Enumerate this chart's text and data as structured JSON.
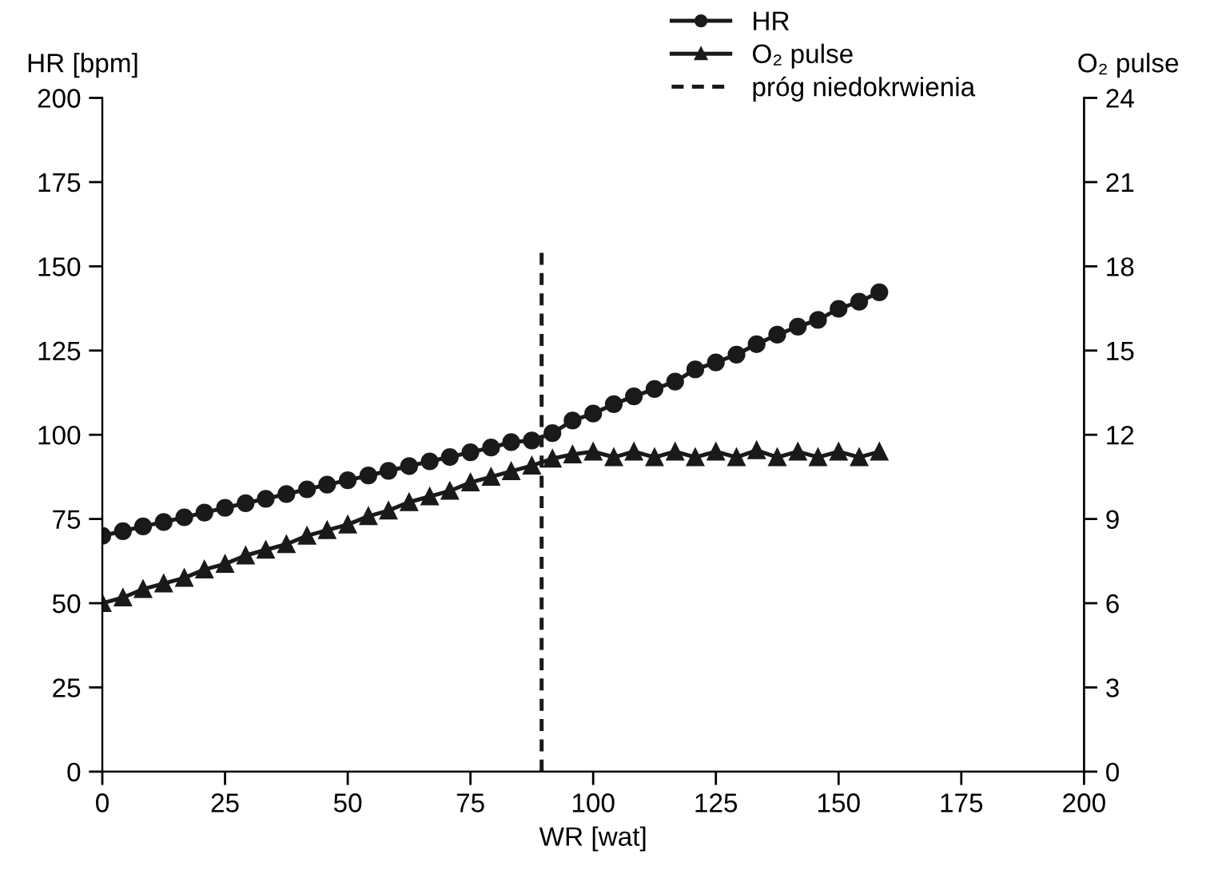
{
  "chart_data": {
    "type": "line",
    "xlabel": "WR [wat]",
    "ylabel": "HR [bpm]",
    "y2label": "O₂ pulse",
    "xlim": [
      0,
      200
    ],
    "xticks": [
      0,
      25,
      50,
      75,
      100,
      125,
      150,
      175,
      200
    ],
    "ylim": [
      0,
      200
    ],
    "yticks": [
      0,
      25,
      50,
      75,
      100,
      125,
      150,
      175,
      200
    ],
    "y2lim": [
      0,
      24
    ],
    "y2ticks": [
      0,
      3,
      6,
      9,
      12,
      15,
      18,
      21,
      24
    ],
    "grid": false,
    "legend": "top right",
    "x": [
      0,
      4.2,
      8.3,
      12.5,
      16.7,
      20.8,
      25,
      29.2,
      33.3,
      37.5,
      41.7,
      45.8,
      50,
      54.2,
      58.3,
      62.5,
      66.7,
      70.8,
      75,
      79.2,
      83.3,
      87.5,
      91.7,
      95.8,
      100,
      104.2,
      108.3,
      112.5,
      116.7,
      120.8,
      125,
      129.2,
      133.3,
      137.5,
      141.7,
      145.8,
      150,
      154.2,
      158.3
    ],
    "series": [
      {
        "name": "HR",
        "color": "#1a1a1a",
        "marker": "circle",
        "line_style": "solid",
        "values": [
          70,
          71.4,
          72.8,
          74.1,
          75.5,
          76.9,
          78.3,
          79.7,
          81.0,
          82.4,
          83.8,
          85.2,
          86.5,
          87.9,
          89.3,
          90.7,
          92.1,
          93.4,
          94.8,
          96.2,
          97.8,
          98.3,
          100.5,
          104.2,
          106.3,
          109.1,
          111.4,
          113.6,
          115.8,
          119.4,
          121.5,
          123.8,
          126.9,
          129.7,
          132.1,
          134.1,
          137.4,
          139.5,
          142.3
        ]
      },
      {
        "name": "O₂ pulse",
        "color": "#1a1a1a",
        "marker": "triangle",
        "line_style": "solid",
        "axis": "y2",
        "values": [
          6.0,
          6.2,
          6.5,
          6.7,
          6.9,
          7.2,
          7.4,
          7.7,
          7.9,
          8.1,
          8.4,
          8.6,
          8.8,
          9.1,
          9.3,
          9.6,
          9.8,
          10.0,
          10.3,
          10.5,
          10.7,
          10.9,
          11.15,
          11.3,
          11.4,
          11.2,
          11.4,
          11.2,
          11.4,
          11.2,
          11.4,
          11.2,
          11.45,
          11.2,
          11.4,
          11.2,
          11.4,
          11.2,
          11.4
        ]
      },
      {
        "name": "próg niedokrwienia",
        "color": "#1a1a1a",
        "marker": "none",
        "line_style": "dashed",
        "x": [
          89.5,
          89.5
        ],
        "values": [
          0,
          154
        ]
      }
    ]
  }
}
